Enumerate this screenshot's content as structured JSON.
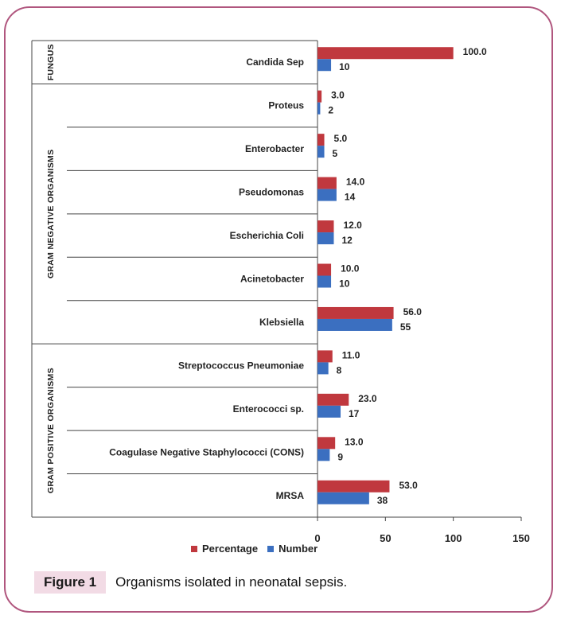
{
  "caption": {
    "label": "Figure 1",
    "text": "Organisms isolated in neonatal sepsis."
  },
  "colors": {
    "percentage": "#c0383e",
    "number": "#3b6fc0",
    "frame": "#b0567e"
  },
  "chart_data": {
    "type": "bar",
    "orientation": "horizontal",
    "title": "",
    "xlim": [
      0,
      150
    ],
    "xticks": [
      0,
      50,
      100,
      150
    ],
    "grid": false,
    "legend": "bottom",
    "groups": [
      {
        "name": "FUNGUS",
        "categories": [
          "Candida Sep"
        ]
      },
      {
        "name": "GRAM NEGATIVE ORGANISMS",
        "categories": [
          "Proteus",
          "Enterobacter",
          "Pseudomonas",
          "Escherichia Coli",
          "Acinetobacter",
          "Klebsiella"
        ]
      },
      {
        "name": "GRAM POSITIVE ORGANISMS",
        "categories": [
          "Streptococcus  Pneumoniae",
          "Enterococci sp.",
          "Coagulase Negative Staphylococci (CONS)",
          "MRSA"
        ]
      }
    ],
    "categories": [
      "Candida Sep",
      "Proteus",
      "Enterobacter",
      "Pseudomonas",
      "Escherichia Coli",
      "Acinetobacter",
      "Klebsiella",
      "Streptococcus  Pneumoniae",
      "Enterococci sp.",
      "Coagulase Negative Staphylococci (CONS)",
      "MRSA"
    ],
    "series": [
      {
        "name": "Percentage",
        "values": [
          100.0,
          3.0,
          5.0,
          14.0,
          12.0,
          10.0,
          56.0,
          11.0,
          23.0,
          13.0,
          53.0
        ],
        "labels": [
          "100.0",
          "3.0",
          "5.0",
          "14.0",
          "12.0",
          "10.0",
          "56.0",
          "11.0",
          "23.0",
          "13.0",
          "53.0"
        ]
      },
      {
        "name": "Number",
        "values": [
          10,
          2,
          5,
          14,
          12,
          10,
          55,
          8,
          17,
          9,
          38
        ],
        "labels": [
          "10",
          "2",
          "5",
          "14",
          "12",
          "10",
          "55",
          "8",
          "17",
          "9",
          "38"
        ]
      }
    ]
  }
}
